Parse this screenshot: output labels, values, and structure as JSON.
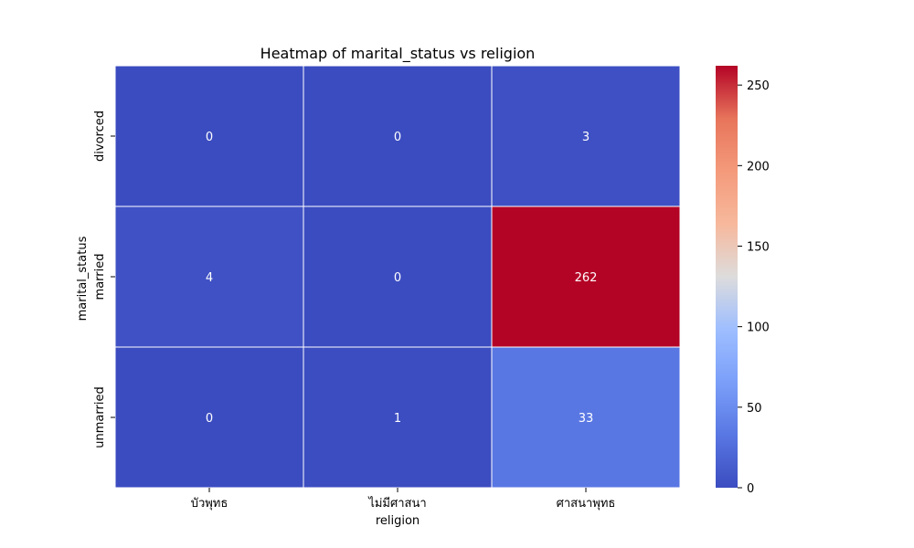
{
  "chart_data": {
    "type": "heatmap",
    "title": "Heatmap of marital_status vs religion",
    "xlabel": "religion",
    "ylabel": "marital_status",
    "x_categories": [
      "บัวพุทธ",
      "ไม่มีศาสนา",
      "ศาสนาพุทธ"
    ],
    "y_categories": [
      "divorced",
      "married",
      "unmarried"
    ],
    "values": [
      [
        0,
        0,
        3
      ],
      [
        4,
        0,
        262
      ],
      [
        0,
        1,
        33
      ]
    ],
    "colormap": "coolwarm",
    "colorbar": {
      "min": 0,
      "max": 262,
      "ticks": [
        0,
        50,
        100,
        150,
        200,
        250
      ]
    },
    "annotate": true
  }
}
